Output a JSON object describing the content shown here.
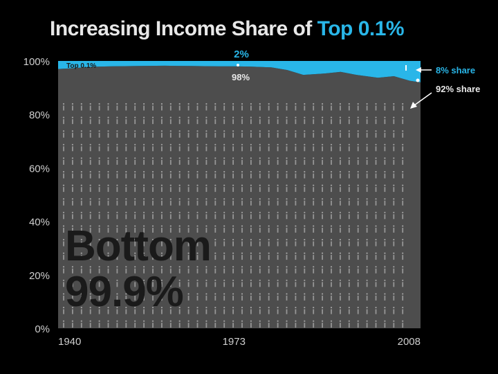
{
  "title": {
    "main": "Increasing Income Share of ",
    "accent": "Top 0.1%"
  },
  "colors": {
    "background": "#000000",
    "bottom_area": "#4d4d4d",
    "top_area": "#29b6e8",
    "label_text": "#e8e8e8",
    "tick_text": "#cfcfcf",
    "figure_marks": "#bdbdbd"
  },
  "chart_data": {
    "type": "area",
    "title": "Increasing Income Share of Top 0.1%",
    "xlabel": "",
    "ylabel": "",
    "x_ticks": [
      "1940",
      "1973",
      "2008"
    ],
    "y_ticks": [
      "0%",
      "20%",
      "40%",
      "60%",
      "80%",
      "100%"
    ],
    "ylim": [
      0,
      100
    ],
    "xlim": [
      1940,
      2008
    ],
    "grid": false,
    "stacked": true,
    "series": [
      {
        "name": "Bottom 99.9%",
        "color": "#4d4d4d",
        "x": [
          1940,
          1943,
          1946,
          1950,
          1955,
          1960,
          1965,
          1970,
          1973,
          1976,
          1980,
          1983,
          1986,
          1990,
          1993,
          1996,
          2000,
          2003,
          2006,
          2008
        ],
        "values": [
          97.0,
          97.3,
          97.8,
          98.0,
          98.1,
          98.2,
          98.1,
          98.0,
          98.0,
          97.9,
          97.6,
          96.6,
          94.8,
          95.3,
          95.9,
          94.8,
          93.7,
          94.3,
          92.6,
          92.0
        ]
      },
      {
        "name": "Top 0.1%",
        "color": "#29b6e8",
        "x": [
          1940,
          1943,
          1946,
          1950,
          1955,
          1960,
          1965,
          1970,
          1973,
          1976,
          1980,
          1983,
          1986,
          1990,
          1993,
          1996,
          2000,
          2003,
          2006,
          2008
        ],
        "values": [
          3.0,
          2.7,
          2.2,
          2.0,
          1.9,
          1.8,
          1.9,
          2.0,
          2.0,
          2.1,
          2.4,
          3.4,
          5.2,
          4.7,
          4.1,
          5.2,
          6.3,
          5.7,
          7.4,
          8.0
        ]
      }
    ],
    "annotations": {
      "top_series_label": "Top 0.1%",
      "mid_top_value": "2%",
      "mid_bottom_value": "98%",
      "end_top_label": "8% share",
      "end_bottom_label": "92% share",
      "big_label_line1": "Bottom",
      "big_label_line2": "99.9%"
    }
  }
}
